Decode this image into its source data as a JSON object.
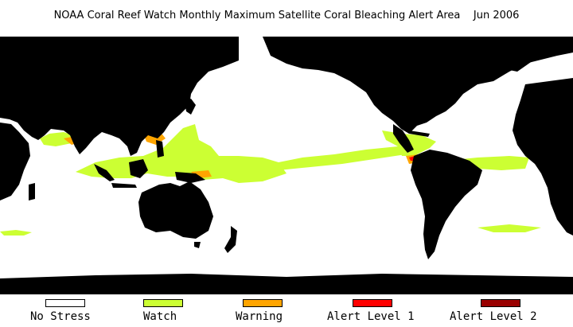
{
  "title": "NOAA Coral Reef Watch Monthly Maximum Satellite Coral Bleaching Alert Area    Jun 2006",
  "colors": {
    "ocean": "#ffffff",
    "land": "#000000",
    "no_stress": "#ffffff",
    "watch": "#ccff33",
    "warning": "#ffa500",
    "alert1": "#ff0000",
    "alert2": "#990000"
  },
  "legend": [
    {
      "label": "No Stress",
      "color": "#ffffff"
    },
    {
      "label": "Watch",
      "color": "#ccff33"
    },
    {
      "label": "Warning",
      "color": "#ffa500"
    },
    {
      "label": "Alert Level 1",
      "color": "#ff0000"
    },
    {
      "label": "Alert Level 2",
      "color": "#990000"
    }
  ]
}
